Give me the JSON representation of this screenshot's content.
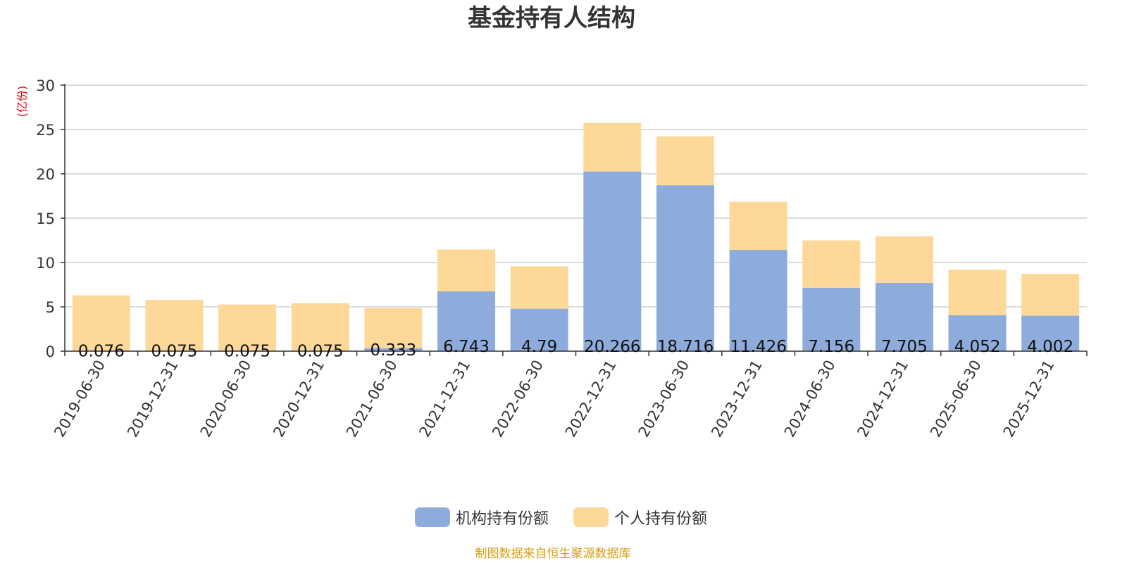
{
  "chart_data": {
    "type": "bar",
    "stacked": true,
    "title": "基金持有人结构",
    "y_unit_label": "(亿份)",
    "categories": [
      "2019-06-30",
      "2019-12-31",
      "2020-06-30",
      "2020-12-31",
      "2021-06-30",
      "2021-12-31",
      "2022-06-30",
      "2022-12-31",
      "2023-06-30",
      "2023-12-31",
      "2024-06-30",
      "2024-12-31",
      "2025-06-30",
      "2025-12-31"
    ],
    "series": [
      {
        "name": "机构持有份额",
        "color": "#8eacdb",
        "values": [
          0.076,
          0.075,
          0.075,
          0.075,
          0.333,
          6.743,
          4.79,
          20.266,
          18.716,
          11.426,
          7.156,
          7.705,
          4.052,
          4.002
        ],
        "labels": [
          "0.076",
          "0.075",
          "0.075",
          "0.075",
          "0.333",
          "6.743",
          "4.79",
          "20.266",
          "18.716",
          "11.426",
          "7.156",
          "7.705",
          "4.052",
          "4.002"
        ]
      },
      {
        "name": "个人持有份额",
        "color": "#fed898",
        "values": [
          6.22,
          5.72,
          5.19,
          5.33,
          4.52,
          4.73,
          4.78,
          5.47,
          5.52,
          5.42,
          5.34,
          5.25,
          5.13,
          4.71
        ]
      }
    ],
    "ylim": [
      0,
      30
    ],
    "yticks": [
      0,
      5,
      10,
      15,
      20,
      25,
      30
    ],
    "grid": true,
    "legend_position": "bottom",
    "source_note": "制图数据来自恒生聚源数据库",
    "colors": {
      "axis": "#333333",
      "grid": "#c8c8c8",
      "unit_label": "#e60000",
      "source": "#d4a017",
      "title": "#333333"
    }
  }
}
